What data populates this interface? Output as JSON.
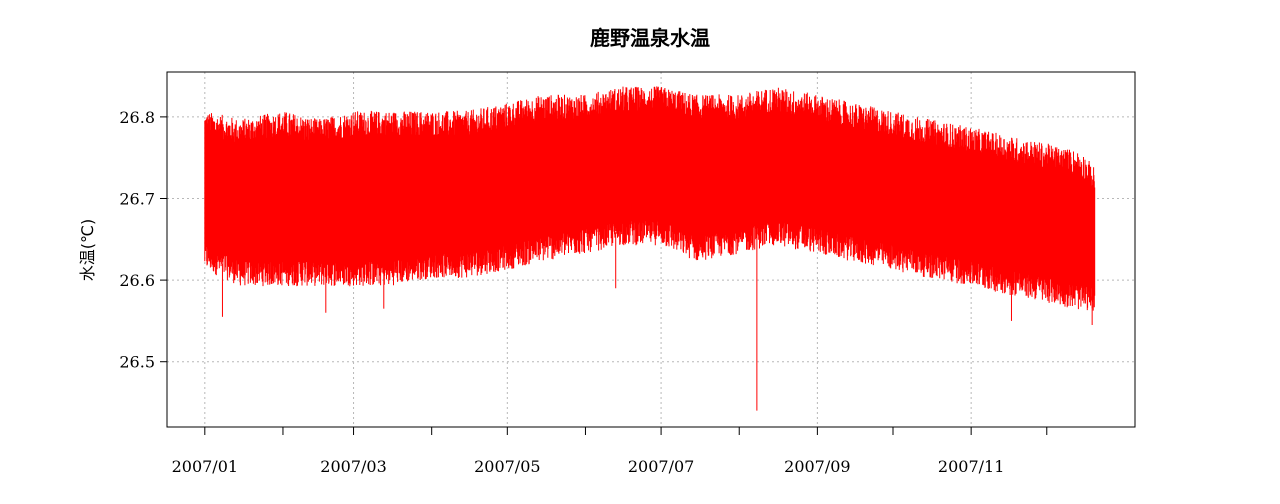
{
  "chart_data": {
    "type": "line",
    "title": "鹿野温泉水温",
    "xlabel": "",
    "ylabel": "水温(℃)",
    "ylim": [
      26.42,
      26.855
    ],
    "xlim": [
      "2006-12-17",
      "2008-01-05"
    ],
    "grid": true,
    "x_tick_labels": [
      "2007/01",
      "2007/03",
      "2007/05",
      "2007/07",
      "2007/09",
      "2007/11"
    ],
    "x_ticks": [
      "2007-01-01",
      "2007-02-01",
      "2007-03-01",
      "2007-04-01",
      "2007-05-01",
      "2007-06-01",
      "2007-07-01",
      "2007-08-01",
      "2007-09-01",
      "2007-10-01",
      "2007-11-01",
      "2007-12-01"
    ],
    "y_ticks": [
      26.5,
      26.6,
      26.7,
      26.8
    ],
    "y_tick_labels": [
      "26.5",
      "26.6",
      "26.7",
      "26.8"
    ],
    "series": [
      {
        "color": "#ff0000",
        "style": "dense daily oscillation; envelope of daily minimum and maximum",
        "envelope_dates": [
          "2007-01-01",
          "2007-01-15",
          "2007-02-01",
          "2007-02-15",
          "2007-03-01",
          "2007-03-15",
          "2007-04-01",
          "2007-04-15",
          "2007-05-01",
          "2007-05-15",
          "2007-06-01",
          "2007-06-15",
          "2007-07-01",
          "2007-07-15",
          "2007-08-01",
          "2007-08-15",
          "2007-09-01",
          "2007-09-15",
          "2007-10-01",
          "2007-10-15",
          "2007-11-01",
          "2007-11-15",
          "2007-12-01",
          "2007-12-15",
          "2007-12-20"
        ],
        "upper": [
          26.79,
          26.78,
          26.79,
          26.78,
          26.79,
          26.79,
          26.79,
          26.79,
          26.8,
          26.81,
          26.81,
          26.82,
          26.82,
          26.81,
          26.81,
          26.82,
          26.81,
          26.8,
          26.79,
          26.78,
          26.77,
          26.76,
          26.75,
          26.74,
          26.72
        ],
        "lower": [
          26.63,
          26.61,
          26.61,
          26.61,
          26.61,
          26.61,
          26.62,
          26.62,
          26.63,
          26.64,
          26.65,
          26.66,
          26.66,
          26.64,
          26.65,
          26.66,
          26.65,
          26.64,
          26.63,
          26.62,
          26.61,
          26.6,
          26.59,
          26.58,
          26.58
        ],
        "outliers": [
          {
            "x": "2007-01-08",
            "y": 26.555
          },
          {
            "x": "2007-02-18",
            "y": 26.56
          },
          {
            "x": "2007-03-13",
            "y": 26.565
          },
          {
            "x": "2007-06-13",
            "y": 26.59
          },
          {
            "x": "2007-08-08",
            "y": 26.44
          },
          {
            "x": "2007-11-17",
            "y": 26.55
          },
          {
            "x": "2007-12-19",
            "y": 26.545
          }
        ]
      }
    ]
  }
}
